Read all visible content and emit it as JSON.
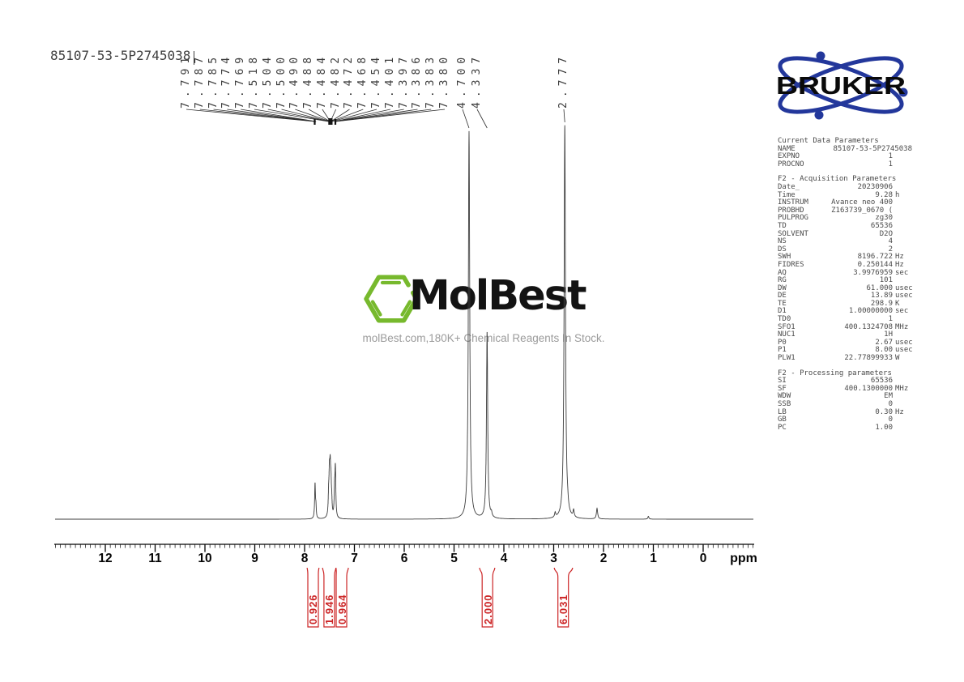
{
  "title": "85107-53-5P2745038",
  "watermark": {
    "logo_text": "MolBest",
    "tagline": "molBest.com,180K+ Chemical Reagents In Stock."
  },
  "bruker": {
    "logo_text": "BRUKER"
  },
  "axis": {
    "unit": "ppm",
    "major_ticks": [
      12,
      11,
      10,
      9,
      8,
      7,
      6,
      5,
      4,
      3,
      2,
      1,
      0
    ],
    "range": [
      13,
      -1
    ],
    "minor_step": 0.1
  },
  "peak_labels": [
    "7.791",
    "7.787",
    "7.785",
    "7.774",
    "7.769",
    "7.518",
    "7.504",
    "7.500",
    "7.490",
    "7.488",
    "7.484",
    "7.482",
    "7.472",
    "7.468",
    "7.454",
    "7.401",
    "7.397",
    "7.386",
    "7.383",
    "7.380",
    "4.700",
    "4.337",
    "2.777"
  ],
  "chart_data": {
    "type": "line",
    "title": "85107-53-5P2745038",
    "xlabel": "ppm",
    "x_range": [
      13,
      -1
    ],
    "x_reversed": true,
    "grid": false,
    "peak_list_ppm": [
      7.791,
      7.787,
      7.785,
      7.774,
      7.769,
      7.518,
      7.504,
      7.5,
      7.49,
      7.488,
      7.484,
      7.482,
      7.472,
      7.468,
      7.454,
      7.401,
      7.397,
      7.386,
      7.383,
      7.38,
      4.7,
      4.337,
      2.777
    ],
    "peaks": [
      {
        "ppm": 7.79,
        "i": 0.088,
        "w": 0.6
      },
      {
        "ppm": 7.772,
        "i": 0.026,
        "w": 0.5
      },
      {
        "ppm": 7.518,
        "i": 0.04,
        "w": 0.55
      },
      {
        "ppm": 7.502,
        "i": 0.092,
        "w": 0.7
      },
      {
        "ppm": 7.486,
        "i": 0.108,
        "w": 0.75
      },
      {
        "ppm": 7.47,
        "i": 0.066,
        "w": 0.6
      },
      {
        "ppm": 7.455,
        "i": 0.028,
        "w": 0.5
      },
      {
        "ppm": 7.399,
        "i": 0.06,
        "w": 0.55
      },
      {
        "ppm": 7.384,
        "i": 0.094,
        "w": 0.65
      },
      {
        "ppm": 7.379,
        "i": 0.038,
        "w": 0.5
      },
      {
        "ppm": 4.7,
        "i": 0.985,
        "w": 1.0
      },
      {
        "ppm": 4.337,
        "i": 0.473,
        "w": 0.9
      },
      {
        "ppm": 2.777,
        "i": 1.0,
        "w": 1.0
      },
      {
        "ppm": 4.25,
        "i": 0.01,
        "w": 0.8
      },
      {
        "ppm": 2.97,
        "i": 0.012,
        "w": 0.8
      },
      {
        "ppm": 2.72,
        "i": 0.012,
        "w": 0.8
      },
      {
        "ppm": 2.6,
        "i": 0.018,
        "w": 0.8
      },
      {
        "ppm": 2.13,
        "i": 0.027,
        "w": 0.9
      },
      {
        "ppm": 1.1,
        "i": 0.007,
        "w": 0.8
      }
    ],
    "integrals": [
      {
        "value": "0.926",
        "center_ppm": 7.83,
        "range_ppm": [
          7.95,
          7.71
        ]
      },
      {
        "value": "1.946",
        "center_ppm": 7.505,
        "range_ppm": [
          7.64,
          7.37
        ]
      },
      {
        "value": "0.964",
        "center_ppm": 7.26,
        "range_ppm": [
          7.37,
          7.12
        ]
      },
      {
        "value": "2.000",
        "center_ppm": 4.33,
        "range_ppm": [
          4.49,
          4.18
        ]
      },
      {
        "value": "6.031",
        "center_ppm": 2.81,
        "range_ppm": [
          2.99,
          2.62
        ]
      }
    ]
  },
  "colors": {
    "red": "#cc2526",
    "green": "#77b92d",
    "blue": "#23379b",
    "trace": "#3d3d3d"
  },
  "params": {
    "sections": [
      {
        "header": "Current Data Parameters",
        "rows": [
          [
            "NAME",
            "85107-53-5P2745038",
            "",
            true
          ],
          [
            "EXPNO",
            "1",
            ""
          ],
          [
            "PROCNO",
            "1",
            ""
          ]
        ]
      },
      {
        "header": "F2 - Acquisition Parameters",
        "rows": [
          [
            "Date_",
            "20230906",
            ""
          ],
          [
            "Time",
            "9.28",
            "h"
          ],
          [
            "INSTRUM",
            "Avance neo 400",
            ""
          ],
          [
            "PROBHD",
            "Z163739_0670 (",
            ""
          ],
          [
            "PULPROG",
            "zg30",
            ""
          ],
          [
            "TD",
            "65536",
            ""
          ],
          [
            "SOLVENT",
            "D2O",
            ""
          ],
          [
            "NS",
            "4",
            ""
          ],
          [
            "DS",
            "2",
            ""
          ],
          [
            "SWH",
            "8196.722",
            "Hz"
          ],
          [
            "FIDRES",
            "0.250144",
            "Hz"
          ],
          [
            "AQ",
            "3.9976959",
            "sec"
          ],
          [
            "RG",
            "101",
            ""
          ],
          [
            "DW",
            "61.000",
            "usec"
          ],
          [
            "DE",
            "13.89",
            "usec"
          ],
          [
            "TE",
            "298.9",
            "K"
          ],
          [
            "D1",
            "1.00000000",
            "sec"
          ],
          [
            "TD0",
            "1",
            ""
          ],
          [
            "SFO1",
            "400.1324708",
            "MHz"
          ],
          [
            "NUC1",
            "1H",
            ""
          ],
          [
            "P0",
            "2.67",
            "usec"
          ],
          [
            "P1",
            "8.00",
            "usec"
          ],
          [
            "PLW1",
            "22.77899933",
            "W"
          ]
        ]
      },
      {
        "header": "F2 - Processing parameters",
        "rows": [
          [
            "SI",
            "65536",
            ""
          ],
          [
            "SF",
            "400.1300000",
            "MHz"
          ],
          [
            "WDW",
            "EM",
            ""
          ],
          [
            "SSB",
            "0",
            ""
          ],
          [
            "LB",
            "0.30",
            "Hz"
          ],
          [
            "GB",
            "0",
            ""
          ],
          [
            "PC",
            "1.00",
            ""
          ]
        ]
      }
    ]
  }
}
